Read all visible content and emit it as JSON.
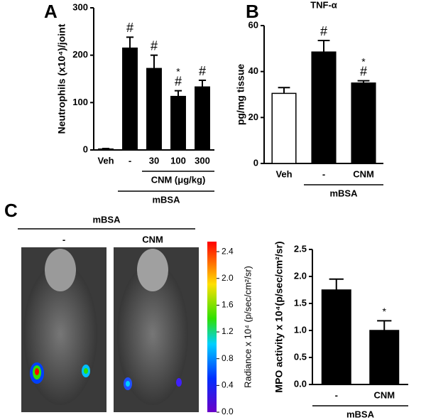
{
  "panels": [
    "A",
    "B",
    "C"
  ],
  "chart_data": [
    {
      "type": "bar",
      "ylabel": "Neutrophils (x10⁴)/joint",
      "categories": [
        "Veh",
        "-",
        "30",
        "100",
        "300"
      ],
      "values": [
        2,
        215,
        172,
        113,
        133
      ],
      "errors": [
        1,
        23,
        28,
        12,
        14
      ],
      "colors": [
        "#000000",
        "#000000",
        "#000000",
        "#000000",
        "#000000"
      ],
      "ylim": [
        0,
        300
      ],
      "yticks": [
        0,
        100,
        200,
        300
      ],
      "annotations": [
        {
          "category": "-",
          "text": "#"
        },
        {
          "category": "30",
          "text": "#"
        },
        {
          "category": "100",
          "text": "#"
        },
        {
          "category": "100",
          "text": "*"
        },
        {
          "category": "300",
          "text": "#"
        }
      ],
      "groups": [
        {
          "label": "CNM (μg/kg)",
          "from": "30",
          "to": "300"
        },
        {
          "label": "mBSA",
          "from": "-",
          "to": "300"
        }
      ]
    },
    {
      "type": "bar",
      "title": "TNF-α",
      "ylabel": "pg/mg tissue",
      "categories": [
        "Veh",
        "-",
        "CNM"
      ],
      "values": [
        30.5,
        48.5,
        35
      ],
      "errors": [
        2.5,
        5,
        1
      ],
      "colors": [
        "#ffffff",
        "#000000",
        "#000000"
      ],
      "ylim": [
        0,
        60
      ],
      "yticks": [
        0,
        20,
        40,
        60
      ],
      "annotations": [
        {
          "category": "-",
          "text": "#"
        },
        {
          "category": "CNM",
          "text": "#"
        },
        {
          "category": "CNM",
          "text": "*"
        }
      ],
      "groups": [
        {
          "label": "mBSA",
          "from": "-",
          "to": "CNM"
        }
      ]
    },
    {
      "type": "bar",
      "ylabel": "MPO activity x 10⁴(p/sec/cm²/sr)",
      "categories": [
        "-",
        "CNM"
      ],
      "values": [
        1.75,
        1.0
      ],
      "errors": [
        0.2,
        0.18
      ],
      "colors": [
        "#000000",
        "#000000"
      ],
      "ylim": [
        0,
        2.5
      ],
      "yticks": [
        {
          "value": 0,
          "label": "0.0"
        },
        0.5,
        {
          "value": 1,
          "label": "1.0"
        },
        1.5,
        {
          "value": 2,
          "label": "2.0"
        },
        2.5
      ],
      "annotations": [
        {
          "category": "CNM",
          "text": "*"
        }
      ],
      "groups": [
        {
          "label": "mBSA",
          "from": "-",
          "to": "CNM"
        }
      ]
    }
  ],
  "imaging": {
    "group_label": "mBSA",
    "columns": [
      "-",
      "CNM"
    ],
    "colorbar": {
      "label": "Radiance x 10⁴ (p/sec/cm²/sr)",
      "lim": [
        0,
        2.55
      ],
      "ticks": [
        {
          "value": 0,
          "label": "0.0"
        },
        0.4,
        0.8,
        1.2,
        1.6,
        {
          "value": 2,
          "label": "2.0"
        },
        2.4
      ]
    }
  }
}
